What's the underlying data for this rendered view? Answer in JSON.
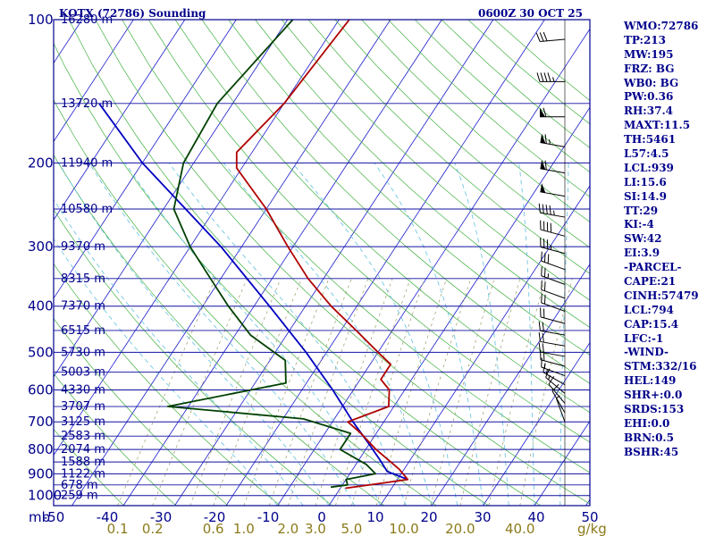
{
  "header": {
    "station": "KOTX (72786) Sounding",
    "time": "0600Z 30 OCT 25"
  },
  "stats": [
    "WMO:72786",
    "TP:213",
    "MW:195",
    "FRZ: BG",
    "WB0: BG",
    "PW:0.36",
    "RH:37.4",
    "MAXT:11.5",
    "TH:5461",
    "L57:4.5",
    "LCL:939",
    "LI:15.6",
    "SI:14.9",
    "TT:29",
    "KI:-4",
    "SW:42",
    "EI:3.9",
    "-PARCEL-",
    "CAPE:21",
    "CINH:57479",
    "LCL:794",
    "CAP:15.4",
    "LFC:-1",
    "-WIND-",
    "STM:332/16",
    "HEL:149",
    "SHR+:0.0",
    "SRDS:153",
    "EHI:0.0",
    "BRN:0.5",
    "BSHR:45"
  ],
  "colors": {
    "isobar": "#1010a0",
    "isotherm": "#1a1acc",
    "dry_adiabat": "#40b040",
    "moist_adiabat": "#60c0e0",
    "mixing_ratio": "#999966",
    "temperature": "#b00000",
    "dewpoint": "#004000",
    "parcel": "#0000c0",
    "frame": "#00008b",
    "barb": "#000000"
  },
  "chart_data": {
    "type": "skew-t",
    "xlabel": "",
    "unit_pressure": "mb",
    "unit_mixing_ratio": "g/kg",
    "pressure_levels": [
      {
        "p": 100,
        "label": "100"
      },
      {
        "p": 200,
        "label": "200"
      },
      {
        "p": 300,
        "label": "300"
      },
      {
        "p": 400,
        "label": "400"
      },
      {
        "p": 500,
        "label": "500"
      },
      {
        "p": 600,
        "label": "600"
      },
      {
        "p": 700,
        "label": "700"
      },
      {
        "p": 800,
        "label": "800"
      },
      {
        "p": 900,
        "label": "900"
      },
      {
        "p": 1000,
        "label": "1000"
      }
    ],
    "height_levels": [
      {
        "p": 100,
        "label": "16280 m"
      },
      {
        "p": 150,
        "label": "13720 m"
      },
      {
        "p": 200,
        "label": "11940 m"
      },
      {
        "p": 250,
        "label": "10580 m"
      },
      {
        "p": 300,
        "label": "9370 m"
      },
      {
        "p": 350,
        "label": "8315 m"
      },
      {
        "p": 400,
        "label": "7370 m"
      },
      {
        "p": 450,
        "label": "6515 m"
      },
      {
        "p": 500,
        "label": "5730 m"
      },
      {
        "p": 550,
        "label": "5003 m"
      },
      {
        "p": 600,
        "label": "4330 m"
      },
      {
        "p": 650,
        "label": "3707 m"
      },
      {
        "p": 700,
        "label": "3125 m"
      },
      {
        "p": 750,
        "label": "2583 m"
      },
      {
        "p": 800,
        "label": "2074 m"
      },
      {
        "p": 850,
        "label": "1588 m"
      },
      {
        "p": 900,
        "label": "1122 m"
      },
      {
        "p": 950,
        "label": "678 m"
      },
      {
        "p": 1000,
        "label": "259 m"
      }
    ],
    "temperature_ticks": [
      "-50",
      "-40",
      "-30",
      "-20",
      "-10",
      "0",
      "10",
      "20",
      "30",
      "40",
      "50"
    ],
    "mixing_ratio_labels": [
      {
        "w": 0.1,
        "label": "0.1"
      },
      {
        "w": 0.2,
        "label": "0.2"
      },
      {
        "w": 0.6,
        "label": "0.6"
      },
      {
        "w": 1.0,
        "label": "1.0"
      },
      {
        "w": 2.0,
        "label": "2.0"
      },
      {
        "w": 3.0,
        "label": "3.0"
      },
      {
        "w": 5.0,
        "label": "5.0"
      },
      {
        "w": 10.0,
        "label": "10.0"
      },
      {
        "w": 20.0,
        "label": "20.0"
      },
      {
        "w": 40.0,
        "label": "40.0"
      }
    ],
    "temperature_profile": [
      [
        100,
        -58
      ],
      [
        150,
        -60
      ],
      [
        190,
        -63
      ],
      [
        205,
        -61
      ],
      [
        250,
        -50
      ],
      [
        300,
        -41
      ],
      [
        350,
        -33
      ],
      [
        400,
        -25
      ],
      [
        450,
        -17
      ],
      [
        500,
        -10
      ],
      [
        530,
        -6
      ],
      [
        570,
        -6
      ],
      [
        600,
        -3
      ],
      [
        650,
        -1
      ],
      [
        700,
        -7
      ],
      [
        740,
        -3
      ],
      [
        800,
        2
      ],
      [
        880,
        9
      ],
      [
        925,
        12
      ],
      [
        940,
        8
      ],
      [
        965,
        1
      ]
    ],
    "dewpoint_profile": [
      [
        100,
        -69
      ],
      [
        150,
        -73
      ],
      [
        200,
        -72
      ],
      [
        250,
        -68
      ],
      [
        300,
        -60
      ],
      [
        350,
        -52
      ],
      [
        400,
        -45
      ],
      [
        460,
        -37
      ],
      [
        520,
        -27
      ],
      [
        580,
        -24
      ],
      [
        650,
        -44
      ],
      [
        690,
        -16
      ],
      [
        740,
        -5
      ],
      [
        800,
        -5
      ],
      [
        860,
        2
      ],
      [
        900,
        5
      ],
      [
        925,
        0
      ],
      [
        950,
        1
      ],
      [
        960,
        -2
      ]
    ],
    "parcel_profile": [
      [
        925,
        12
      ],
      [
        890,
        7
      ],
      [
        840,
        4
      ],
      [
        780,
        0
      ],
      [
        700,
        -6
      ],
      [
        600,
        -14
      ],
      [
        500,
        -24
      ],
      [
        400,
        -37
      ],
      [
        300,
        -54
      ],
      [
        200,
        -80
      ],
      [
        150,
        -96
      ]
    ],
    "wind_barbs": [
      [
        110,
        265,
        30
      ],
      [
        135,
        270,
        45
      ],
      [
        160,
        270,
        60
      ],
      [
        185,
        280,
        65
      ],
      [
        210,
        280,
        60
      ],
      [
        235,
        280,
        50
      ],
      [
        260,
        280,
        45
      ],
      [
        285,
        285,
        40
      ],
      [
        310,
        285,
        35
      ],
      [
        335,
        290,
        30
      ],
      [
        360,
        290,
        25
      ],
      [
        385,
        290,
        20
      ],
      [
        410,
        290,
        20
      ],
      [
        435,
        285,
        20
      ],
      [
        460,
        280,
        20
      ],
      [
        485,
        280,
        20
      ],
      [
        510,
        280,
        20
      ],
      [
        535,
        285,
        20
      ],
      [
        560,
        290,
        15
      ],
      [
        585,
        300,
        15
      ],
      [
        610,
        310,
        15
      ],
      [
        640,
        320,
        10
      ],
      [
        670,
        330,
        10
      ],
      [
        700,
        340,
        5
      ]
    ]
  }
}
